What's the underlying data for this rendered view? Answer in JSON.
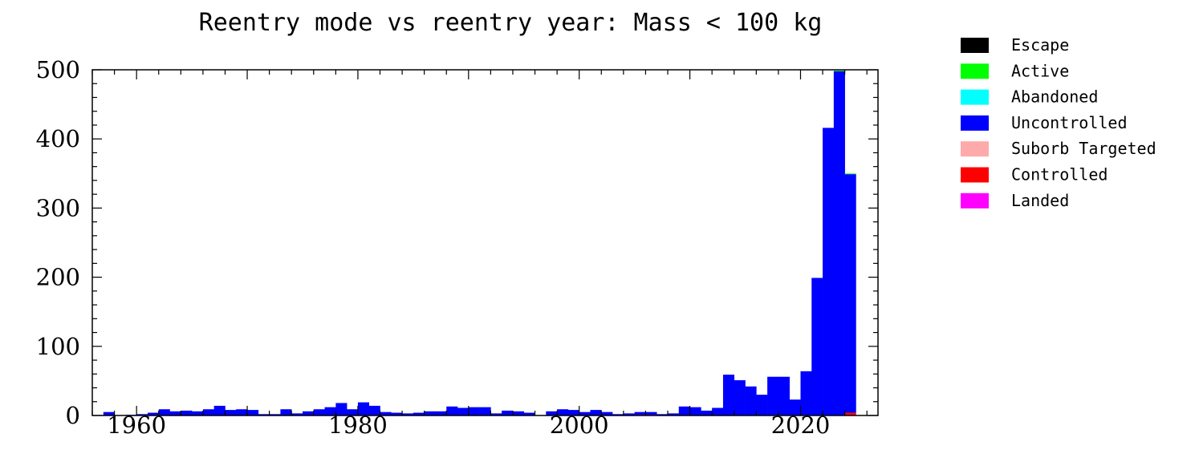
{
  "chart_data": {
    "type": "bar",
    "stacked": true,
    "title": "Reentry mode vs reentry year: Mass < 100 kg",
    "xlabel": "",
    "ylabel": "",
    "xlim": [
      1956,
      2027
    ],
    "ylim": [
      0,
      500
    ],
    "x_ticks": [
      1960,
      1980,
      2000,
      2020
    ],
    "y_ticks": [
      0,
      100,
      200,
      300,
      400,
      500
    ],
    "grid": false,
    "legend_position": "right",
    "series": [
      {
        "name": "Escape",
        "color": "#000000",
        "values": []
      },
      {
        "name": "Active",
        "color": "#00ff00",
        "values": [
          [
            2023,
            1
          ],
          [
            2024,
            1
          ]
        ]
      },
      {
        "name": "Abandoned",
        "color": "#00ffff",
        "values": []
      },
      {
        "name": "Uncontrolled",
        "color": "#0000ff",
        "values": [
          [
            1957,
            5
          ],
          [
            1958,
            0
          ],
          [
            1959,
            1
          ],
          [
            1960,
            2
          ],
          [
            1961,
            4
          ],
          [
            1962,
            9
          ],
          [
            1963,
            6
          ],
          [
            1964,
            7
          ],
          [
            1965,
            6
          ],
          [
            1966,
            9
          ],
          [
            1967,
            14
          ],
          [
            1968,
            8
          ],
          [
            1969,
            9
          ],
          [
            1970,
            8
          ],
          [
            1971,
            2
          ],
          [
            1972,
            2
          ],
          [
            1973,
            9
          ],
          [
            1974,
            3
          ],
          [
            1975,
            6
          ],
          [
            1976,
            9
          ],
          [
            1977,
            12
          ],
          [
            1978,
            18
          ],
          [
            1979,
            9
          ],
          [
            1980,
            19
          ],
          [
            1981,
            14
          ],
          [
            1982,
            5
          ],
          [
            1983,
            4
          ],
          [
            1984,
            3
          ],
          [
            1985,
            4
          ],
          [
            1986,
            6
          ],
          [
            1987,
            6
          ],
          [
            1988,
            13
          ],
          [
            1989,
            11
          ],
          [
            1990,
            12
          ],
          [
            1991,
            12
          ],
          [
            1992,
            3
          ],
          [
            1993,
            7
          ],
          [
            1994,
            6
          ],
          [
            1995,
            4
          ],
          [
            1996,
            0
          ],
          [
            1997,
            6
          ],
          [
            1998,
            9
          ],
          [
            1999,
            8
          ],
          [
            2000,
            5
          ],
          [
            2001,
            8
          ],
          [
            2002,
            5
          ],
          [
            2003,
            2
          ],
          [
            2004,
            3
          ],
          [
            2005,
            4
          ],
          [
            2006,
            4
          ],
          [
            2007,
            2
          ],
          [
            2008,
            3
          ],
          [
            2009,
            13
          ],
          [
            2010,
            12
          ],
          [
            2011,
            7
          ],
          [
            2012,
            11
          ],
          [
            2013,
            59
          ],
          [
            2014,
            51
          ],
          [
            2015,
            42
          ],
          [
            2016,
            30
          ],
          [
            2017,
            56
          ],
          [
            2018,
            56
          ],
          [
            2019,
            23
          ],
          [
            2020,
            64
          ],
          [
            2021,
            199
          ],
          [
            2022,
            416
          ],
          [
            2023,
            498
          ],
          [
            2024,
            345
          ]
        ]
      },
      {
        "name": "Suborb Targeted",
        "color": "#ffaaaa",
        "values": []
      },
      {
        "name": "Controlled",
        "color": "#ff0000",
        "values": [
          [
            2005,
            1
          ],
          [
            2006,
            1
          ],
          [
            2024,
            4
          ]
        ]
      },
      {
        "name": "Landed",
        "color": "#ff00ff",
        "values": []
      }
    ]
  }
}
